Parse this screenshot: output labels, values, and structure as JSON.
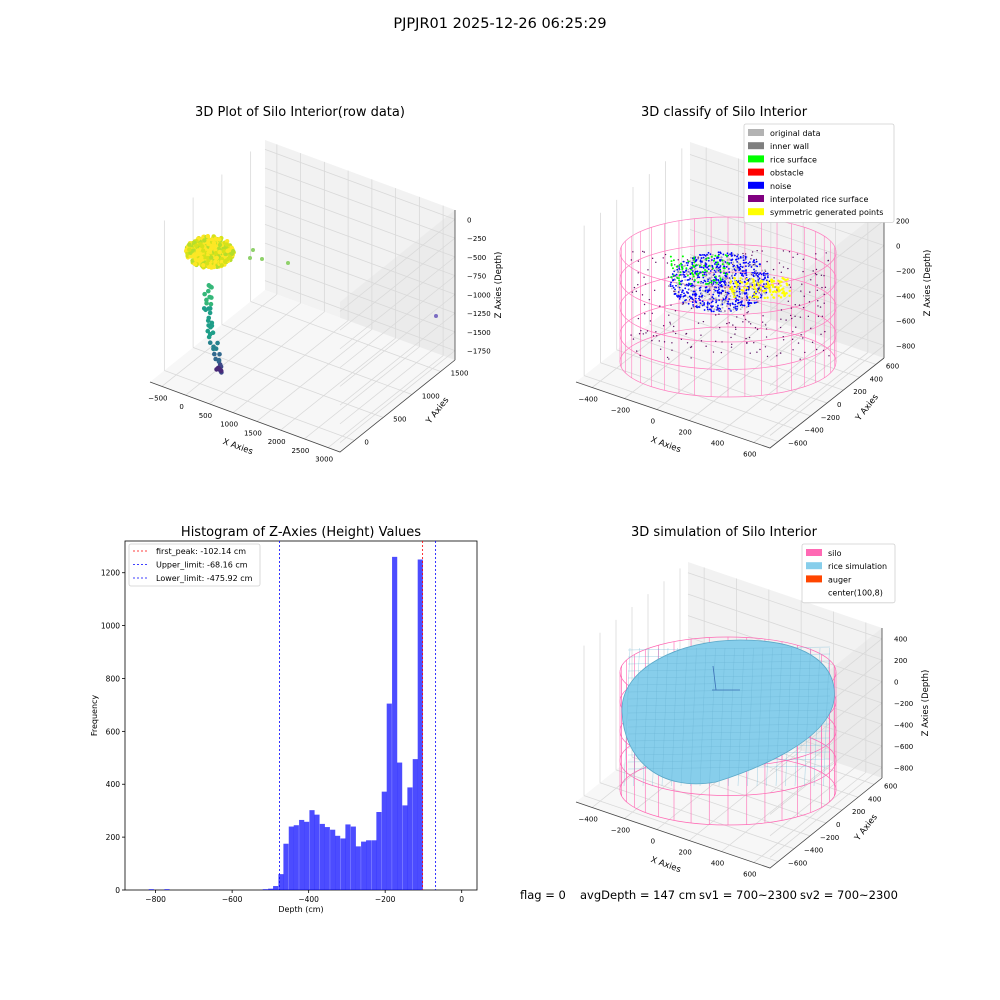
{
  "figure": {
    "suptitle": "PJPJR01 2025-12-26 06:25:29"
  },
  "status": {
    "flag": "flag = 0",
    "avg_depth": "avgDepth = 147 cm",
    "sv1": "sv1 = 700~2300",
    "sv2": "sv2 = 700~2300"
  },
  "chart_data": [
    {
      "type": "scatter",
      "projection": "3d",
      "title": "3D Plot of Silo Interior(row data)",
      "xlabel": "X Axies",
      "ylabel": "Y Axies",
      "zlabel": "Z Axies (Depth)",
      "xticks": [
        "−500",
        "0",
        "500",
        "1000",
        "1500",
        "2000",
        "2500",
        "3000"
      ],
      "yticks": [
        "0",
        "500",
        "1000",
        "1500"
      ],
      "zticks": [
        "0",
        "−250",
        "−500",
        "−750",
        "−1000",
        "−1250",
        "−1500",
        "−1750"
      ],
      "xlim": [
        -650,
        3050
      ],
      "ylim": [
        -150,
        1900
      ],
      "zlim": [
        -1950,
        50
      ],
      "colormap": "viridis",
      "grid": true
    },
    {
      "type": "scatter",
      "projection": "3d",
      "title": "3D classify of Silo Interior",
      "xlabel": "X Axies",
      "ylabel": "Y Axies",
      "zlabel": "Z Axies (Depth)",
      "xticks": [
        "−400",
        "−200",
        "0",
        "200",
        "400",
        "600"
      ],
      "yticks": [
        "−600",
        "−400",
        "−200",
        "0",
        "200",
        "400",
        "600"
      ],
      "zticks": [
        "200",
        "0",
        "−200",
        "−400",
        "−600",
        "−800"
      ],
      "xlim": [
        -520,
        720
      ],
      "ylim": [
        -680,
        720
      ],
      "zlim": [
        -950,
        350
      ],
      "legend_position": "upper right",
      "legend": [
        {
          "label": "original data",
          "color": "#b3b3b3"
        },
        {
          "label": "inner wall",
          "color": "#7f7f7f"
        },
        {
          "label": "rice surface",
          "color": "#00ff00"
        },
        {
          "label": "obstacle",
          "color": "#ff0000"
        },
        {
          "label": "noise",
          "color": "#0000ff"
        },
        {
          "label": "interpolated rice surface",
          "color": "#800080"
        },
        {
          "label": "symmetric generated points",
          "color": "#ffff00"
        }
      ],
      "grid": true
    },
    {
      "type": "bar",
      "title": "Histogram of Z-Axies (Height) Values",
      "xlabel": "Depth (cm)",
      "ylabel": "Frequency",
      "xlim": [
        -880,
        40
      ],
      "ylim": [
        0,
        1320
      ],
      "xticks": [
        -800,
        -600,
        -400,
        -200,
        0
      ],
      "yticks": [
        0,
        200,
        400,
        600,
        800,
        1000,
        1200
      ],
      "bin_width": 13.5,
      "bar_color": "#0000ff",
      "bins": [
        {
          "x": -818,
          "count": 3
        },
        {
          "x": -777,
          "count": 3
        },
        {
          "x": -520,
          "count": 3
        },
        {
          "x": -506,
          "count": 5
        },
        {
          "x": -493,
          "count": 15
        },
        {
          "x": -479,
          "count": 60
        },
        {
          "x": -466,
          "count": 175
        },
        {
          "x": -452,
          "count": 240
        },
        {
          "x": -439,
          "count": 245
        },
        {
          "x": -425,
          "count": 265
        },
        {
          "x": -412,
          "count": 258
        },
        {
          "x": -398,
          "count": 302
        },
        {
          "x": -385,
          "count": 285
        },
        {
          "x": -371,
          "count": 250
        },
        {
          "x": -358,
          "count": 238
        },
        {
          "x": -344,
          "count": 228
        },
        {
          "x": -331,
          "count": 205
        },
        {
          "x": -317,
          "count": 195
        },
        {
          "x": -304,
          "count": 248
        },
        {
          "x": -290,
          "count": 240
        },
        {
          "x": -277,
          "count": 165
        },
        {
          "x": -263,
          "count": 183
        },
        {
          "x": -250,
          "count": 188
        },
        {
          "x": -236,
          "count": 188
        },
        {
          "x": -223,
          "count": 295
        },
        {
          "x": -209,
          "count": 372
        },
        {
          "x": -196,
          "count": 705
        },
        {
          "x": -182,
          "count": 1260
        },
        {
          "x": -169,
          "count": 482
        },
        {
          "x": -155,
          "count": 320
        },
        {
          "x": -142,
          "count": 388
        },
        {
          "x": -128,
          "count": 495
        },
        {
          "x": -115,
          "count": 1250
        }
      ],
      "vlines": [
        {
          "label": "first_peak: -102.14 cm",
          "x": -102.14,
          "color": "#ff0000"
        },
        {
          "label": "Upper_limit: -68.16 cm",
          "x": -68.16,
          "color": "#0000ff"
        },
        {
          "label": "Lower_limit: -475.92 cm",
          "x": -475.92,
          "color": "#0000ff"
        }
      ],
      "legend_position": "upper left",
      "grid": false
    },
    {
      "type": "area",
      "projection": "3d",
      "title": "3D simulation of Silo Interior",
      "xlabel": "X Axies",
      "ylabel": "Y Axies",
      "zlabel": "Z Axies (Depth)",
      "xticks": [
        "−400",
        "−200",
        "0",
        "200",
        "400",
        "600"
      ],
      "yticks": [
        "−600",
        "−400",
        "−200",
        "0",
        "200",
        "400",
        "600"
      ],
      "zticks": [
        "400",
        "200",
        "0",
        "−200",
        "−400",
        "−600",
        "−800"
      ],
      "xlim": [
        -520,
        720
      ],
      "ylim": [
        -680,
        720
      ],
      "zlim": [
        -950,
        480
      ],
      "legend_position": "upper right",
      "legend": [
        {
          "label": "silo",
          "color": "#ff69b4"
        },
        {
          "label": "rice simulation",
          "color": "#87ceeb"
        },
        {
          "label": "auger",
          "color": "#ff4500"
        },
        {
          "label": "center(100,8)",
          "color": "none"
        }
      ],
      "grid": true
    }
  ]
}
